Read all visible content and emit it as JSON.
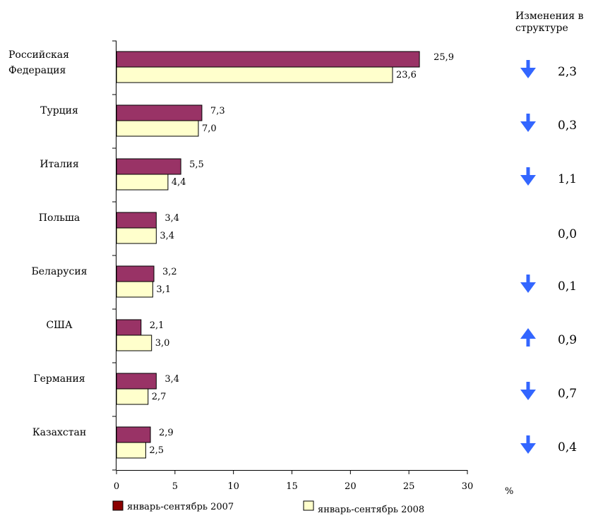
{
  "chart_data": {
    "type": "bar",
    "orientation": "horizontal",
    "categories": [
      "Российская Федерация",
      "Турция",
      "Италия",
      "Польша",
      "Беларусия",
      "США",
      "Германия",
      "Казахстан"
    ],
    "category_lines": [
      [
        "Российская",
        "Федерация"
      ],
      [
        "Турция"
      ],
      [
        "Италия"
      ],
      [
        "Польша"
      ],
      [
        "Беларусия"
      ],
      [
        "США"
      ],
      [
        "Германия"
      ],
      [
        "Казахстан"
      ]
    ],
    "series": [
      {
        "name": "январь-сентябрь 2007",
        "color": "#993366",
        "values": [
          25.9,
          7.3,
          5.5,
          3.4,
          3.2,
          2.1,
          3.4,
          2.9
        ],
        "labels": [
          "25,9",
          "7,3",
          "5,5",
          "3,4",
          "3,2",
          "2,1",
          "3,4",
          "2,9"
        ]
      },
      {
        "name": "январь-сентябрь 2008",
        "color": "#ffffcc",
        "values": [
          23.6,
          7.0,
          4.4,
          3.4,
          3.1,
          3.0,
          2.7,
          2.5
        ],
        "labels": [
          "23,6",
          "7,0",
          "4,4",
          "3,4",
          "3,1",
          "3,0",
          "2,7",
          "2,5"
        ]
      }
    ],
    "xlim": [
      0,
      30
    ],
    "xticks": [
      0,
      5,
      10,
      15,
      20,
      25,
      30
    ],
    "xunit": "%",
    "legend_position": "bottom",
    "legend_swatches": [
      "#8b0000",
      "#ffffcc"
    ],
    "structure_change": {
      "title_lines": [
        "Изменения в",
        "структуре"
      ],
      "values": [
        "2,3",
        "0,3",
        "1,1",
        "0,0",
        "0,1",
        "0,9",
        "0,7",
        "0,4"
      ],
      "direction": [
        "down",
        "down",
        "down",
        "none",
        "down",
        "up",
        "down",
        "down"
      ],
      "arrow_color": "#3366ff"
    }
  }
}
